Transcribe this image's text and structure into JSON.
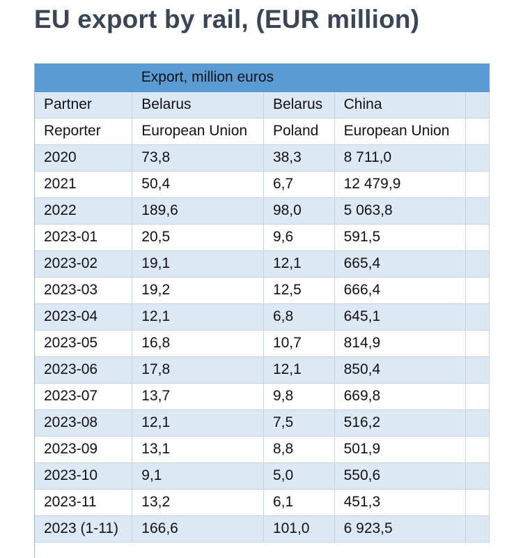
{
  "title": "EU export by rail, (EUR million)",
  "table": {
    "band_label": "Export, million euros",
    "partner_row": [
      "Partner",
      "Belarus",
      "Belarus",
      "China"
    ],
    "reporter_row": [
      "Reporter",
      "European Union",
      "Poland",
      "European Union"
    ],
    "rows": [
      [
        "2020",
        "73,8",
        "38,3",
        "8 711,0"
      ],
      [
        "2021",
        "50,4",
        "6,7",
        "12 479,9"
      ],
      [
        "2022",
        "189,6",
        "98,0",
        "5 063,8"
      ],
      [
        "2023-01",
        "20,5",
        "9,6",
        "591,5"
      ],
      [
        "2023-02",
        "19,1",
        "12,1",
        "665,4"
      ],
      [
        "2023-03",
        "19,2",
        "12,5",
        "666,4"
      ],
      [
        "2023-04",
        "12,1",
        "6,8",
        "645,1"
      ],
      [
        "2023-05",
        "16,8",
        "10,7",
        "814,9"
      ],
      [
        "2023-06",
        "17,8",
        "12,1",
        "850,4"
      ],
      [
        "2023-07",
        "13,7",
        "9,8",
        "669,8"
      ],
      [
        "2023-08",
        "12,1",
        "7,5",
        "516,2"
      ],
      [
        "2023-09",
        "13,1",
        "8,8",
        "501,9"
      ],
      [
        "2023-10",
        "9,1",
        "5,0",
        "550,6"
      ],
      [
        "2023-11",
        "13,2",
        "6,1",
        "451,3"
      ],
      [
        "2023 (1-11)",
        "166,6",
        "101,0",
        "6 923,5"
      ]
    ]
  }
}
